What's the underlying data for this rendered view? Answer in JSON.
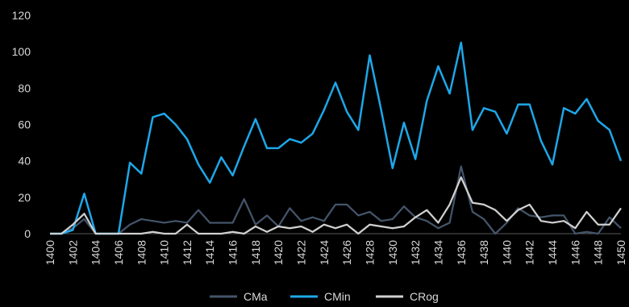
{
  "chart_data": {
    "type": "line",
    "title": "",
    "xlabel": "",
    "ylabel": "",
    "ylim": [
      0,
      120
    ],
    "y_ticks": [
      0,
      20,
      40,
      60,
      80,
      100,
      120
    ],
    "x": [
      1400,
      1401,
      1402,
      1403,
      1404,
      1405,
      1406,
      1407,
      1408,
      1409,
      1410,
      1411,
      1412,
      1413,
      1414,
      1415,
      1416,
      1417,
      1418,
      1419,
      1420,
      1421,
      1422,
      1423,
      1424,
      1425,
      1426,
      1427,
      1428,
      1429,
      1430,
      1431,
      1432,
      1433,
      1434,
      1435,
      1436,
      1437,
      1438,
      1439,
      1440,
      1441,
      1442,
      1443,
      1444,
      1445,
      1446,
      1447,
      1448,
      1449,
      1450
    ],
    "x_tick_labels": [
      "1400",
      "1402",
      "1404",
      "1406",
      "1408",
      "1410",
      "1412",
      "1414",
      "1416",
      "1418",
      "1420",
      "1422",
      "1424",
      "1426",
      "1428",
      "1430",
      "1432",
      "1434",
      "1436",
      "1438",
      "1440",
      "1442",
      "1444",
      "1446",
      "1448",
      "1450"
    ],
    "grid": false,
    "legend_position": "bottom",
    "series": [
      {
        "name": "CMa",
        "color": "#44546a",
        "values": [
          0,
          0,
          3,
          8,
          0,
          0,
          0,
          5,
          8,
          7,
          6,
          7,
          6,
          13,
          6,
          6,
          6,
          19,
          5,
          10,
          4,
          14,
          7,
          9,
          7,
          16,
          16,
          10,
          12,
          7,
          8,
          15,
          9,
          7,
          3,
          6,
          37,
          12,
          8,
          0,
          6,
          14,
          10,
          9,
          10,
          10,
          0,
          1,
          0,
          9,
          3
        ]
      },
      {
        "name": "CMin",
        "color": "#1ea7e8",
        "values": [
          0,
          0,
          2,
          22,
          0,
          0,
          0,
          39,
          33,
          64,
          66,
          60,
          52,
          38,
          28,
          42,
          32,
          48,
          63,
          47,
          47,
          52,
          50,
          55,
          68,
          83,
          67,
          57,
          98,
          68,
          36,
          61,
          41,
          73,
          92,
          77,
          105,
          57,
          69,
          67,
          55,
          71,
          71,
          51,
          38,
          69,
          66,
          74,
          62,
          57,
          40
        ]
      },
      {
        "name": "CRog",
        "color": "#d0d0d0",
        "values": [
          0,
          0,
          5,
          11,
          0,
          0,
          0,
          0,
          0,
          1,
          0,
          0,
          5,
          0,
          0,
          0,
          1,
          0,
          4,
          1,
          4,
          3,
          4,
          1,
          5,
          3,
          5,
          0,
          5,
          4,
          3,
          4,
          9,
          13,
          6,
          16,
          31,
          17,
          16,
          13,
          7,
          13,
          16,
          7,
          6,
          7,
          3,
          12,
          5,
          5,
          14
        ]
      }
    ]
  }
}
